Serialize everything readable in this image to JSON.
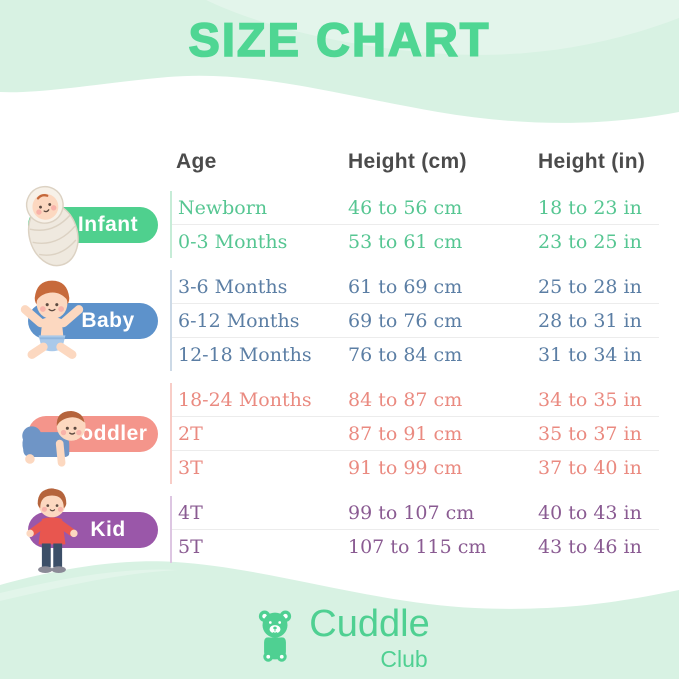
{
  "title": "SIZE CHART",
  "brand": {
    "name": "Cuddle",
    "sub": "Club"
  },
  "colors": {
    "mint": "#d8f2e3",
    "title": "#4fd693",
    "brand": "#4fd092",
    "header_text": "#4b4b4b",
    "separator": "#ececec"
  },
  "table": {
    "headers": [
      "Age",
      "Height (cm)",
      "Height (in)"
    ],
    "groups": [
      {
        "label": "Infant",
        "icon": "swaddled-infant",
        "color": "#4fd08e",
        "text_color": "#56c692",
        "divider_color": "#c6ecd7",
        "rows": [
          {
            "age": "Newborn",
            "cm": "46 to 56 cm",
            "in": "18 to 23 in"
          },
          {
            "age": "0-3 Months",
            "cm": "53 to 61 cm",
            "in": "23 to 25 in"
          }
        ]
      },
      {
        "label": "Baby",
        "icon": "sitting-baby",
        "color": "#5d92cb",
        "text_color": "#5b7ea4",
        "divider_color": "#ccd9e6",
        "rows": [
          {
            "age": "3-6 Months",
            "cm": "61 to 69 cm",
            "in": "25 to 28 in"
          },
          {
            "age": "6-12 Months",
            "cm": "69 to 76 cm",
            "in": "28 to 31 in"
          },
          {
            "age": "12-18 Months",
            "cm": "76 to 84 cm",
            "in": "31 to 34 in"
          }
        ]
      },
      {
        "label": "Toddler",
        "icon": "crawling-toddler",
        "color": "#f4958b",
        "text_color": "#ea8a80",
        "divider_color": "#f8cdc7",
        "rows": [
          {
            "age": "18-24 Months",
            "cm": "84 to 87 cm",
            "in": "34 to 35 in"
          },
          {
            "age": "2T",
            "cm": "87 to 91 cm",
            "in": "35 to 37 in"
          },
          {
            "age": "3T",
            "cm": "91 to 99 cm",
            "in": "37 to 40 in"
          }
        ]
      },
      {
        "label": "Kid",
        "icon": "standing-kid",
        "color": "#9a57a9",
        "text_color": "#8a5b92",
        "divider_color": "#ddc6e2",
        "rows": [
          {
            "age": "4T",
            "cm": "99 to 107 cm",
            "in": "40 to 43 in"
          },
          {
            "age": "5T",
            "cm": "107 to 115 cm",
            "in": "43 to 46 in"
          }
        ]
      }
    ]
  }
}
